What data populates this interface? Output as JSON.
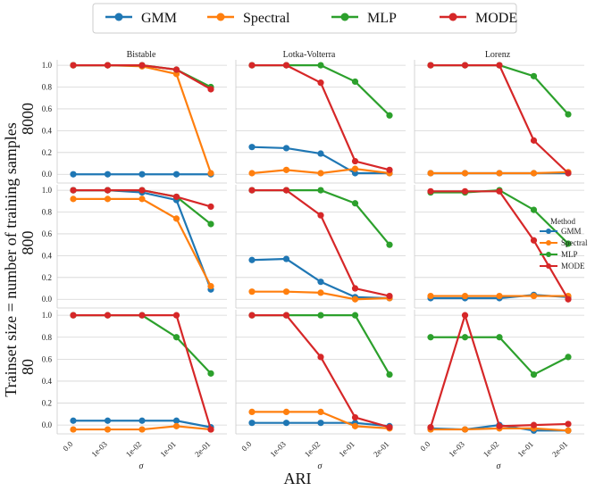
{
  "chart_data": {
    "type": "line",
    "legend": {
      "position": "top-center",
      "entries": [
        {
          "name": "GMM",
          "color": "#1f77b4"
        },
        {
          "name": "Spectral",
          "color": "#ff7f0e"
        },
        {
          "name": "MLP",
          "color": "#2ca02c"
        },
        {
          "name": "MODE",
          "color": "#d62728"
        }
      ]
    },
    "inline_legend": {
      "title": "Method",
      "position": "right",
      "entries": [
        "GMM",
        "Spectral",
        "MLP",
        "MODE"
      ]
    },
    "ylabel": "Trainset size = number of training samples",
    "xlabel_main": "ARI",
    "xlabel_panel": "σ",
    "x_categories": [
      "0.0",
      "1e-03",
      "1e-02",
      "1e-01",
      "2e-01"
    ],
    "ylim": [
      -0.08,
      1.05
    ],
    "y_ticks": [
      "0.0",
      "0.2",
      "0.4",
      "0.6",
      "0.8",
      "1.0"
    ],
    "col_titles": [
      "Bistable",
      "Lotka-Volterra",
      "Lorenz"
    ],
    "row_labels": [
      "8000",
      "800",
      "80"
    ],
    "panels": [
      {
        "row": 0,
        "col": 0,
        "series": {
          "GMM": [
            0.0,
            0.0,
            0.0,
            0.0,
            0.0
          ],
          "Spectral": [
            1.0,
            1.0,
            0.99,
            0.92,
            0.01
          ],
          "MLP": [
            1.0,
            1.0,
            1.0,
            0.96,
            0.8
          ],
          "MODE": [
            1.0,
            1.0,
            1.0,
            0.96,
            0.78
          ]
        }
      },
      {
        "row": 0,
        "col": 1,
        "series": {
          "GMM": [
            0.25,
            0.24,
            0.19,
            0.01,
            0.01
          ],
          "Spectral": [
            0.01,
            0.04,
            0.01,
            0.05,
            0.01
          ],
          "MLP": [
            1.0,
            1.0,
            1.0,
            0.85,
            0.54
          ],
          "MODE": [
            1.0,
            1.0,
            0.84,
            0.12,
            0.04
          ]
        }
      },
      {
        "row": 0,
        "col": 2,
        "series": {
          "GMM": [
            0.01,
            0.01,
            0.01,
            0.01,
            0.01
          ],
          "Spectral": [
            0.01,
            0.01,
            0.01,
            0.01,
            0.02
          ],
          "MLP": [
            1.0,
            1.0,
            1.0,
            0.9,
            0.55
          ],
          "MODE": [
            1.0,
            1.0,
            1.0,
            0.31,
            0.01
          ]
        }
      },
      {
        "row": 1,
        "col": 0,
        "series": {
          "GMM": [
            1.0,
            1.0,
            0.98,
            0.91,
            0.09
          ],
          "Spectral": [
            0.92,
            0.92,
            0.92,
            0.74,
            0.12
          ],
          "MLP": [
            1.0,
            1.0,
            1.0,
            0.94,
            0.69
          ],
          "MODE": [
            1.0,
            1.0,
            1.0,
            0.94,
            0.85
          ]
        }
      },
      {
        "row": 1,
        "col": 1,
        "series": {
          "GMM": [
            0.36,
            0.37,
            0.16,
            0.02,
            0.01
          ],
          "Spectral": [
            0.07,
            0.07,
            0.06,
            0.0,
            0.01
          ],
          "MLP": [
            1.0,
            1.0,
            1.0,
            0.88,
            0.5
          ],
          "MODE": [
            1.0,
            1.0,
            0.77,
            0.1,
            0.03
          ]
        }
      },
      {
        "row": 1,
        "col": 2,
        "series": {
          "GMM": [
            0.01,
            0.01,
            0.01,
            0.04,
            0.02
          ],
          "Spectral": [
            0.03,
            0.03,
            0.03,
            0.03,
            0.03
          ],
          "MLP": [
            0.98,
            0.98,
            1.0,
            0.82,
            0.51
          ],
          "MODE": [
            0.99,
            0.99,
            0.99,
            0.54,
            0.0
          ]
        }
      },
      {
        "row": 2,
        "col": 0,
        "series": {
          "GMM": [
            0.04,
            0.04,
            0.04,
            0.04,
            -0.02
          ],
          "Spectral": [
            -0.04,
            -0.04,
            -0.04,
            -0.01,
            -0.04
          ],
          "MLP": [
            1.0,
            1.0,
            1.0,
            0.8,
            0.47
          ],
          "MODE": [
            1.0,
            1.0,
            1.0,
            1.0,
            -0.04
          ]
        }
      },
      {
        "row": 2,
        "col": 1,
        "series": {
          "GMM": [
            0.02,
            0.02,
            0.02,
            0.02,
            -0.01
          ],
          "Spectral": [
            0.12,
            0.12,
            0.12,
            -0.01,
            -0.03
          ],
          "MLP": [
            1.0,
            1.0,
            1.0,
            1.0,
            0.46
          ],
          "MODE": [
            1.0,
            1.0,
            0.62,
            0.07,
            -0.02
          ]
        }
      },
      {
        "row": 2,
        "col": 2,
        "series": {
          "GMM": [
            -0.03,
            -0.04,
            0.0,
            -0.05,
            -0.05
          ],
          "Spectral": [
            -0.04,
            -0.04,
            -0.03,
            -0.03,
            -0.05
          ],
          "MLP": [
            0.8,
            0.8,
            0.8,
            0.46,
            0.62
          ],
          "MODE": [
            -0.02,
            1.0,
            -0.01,
            0.0,
            0.01
          ]
        }
      }
    ]
  }
}
